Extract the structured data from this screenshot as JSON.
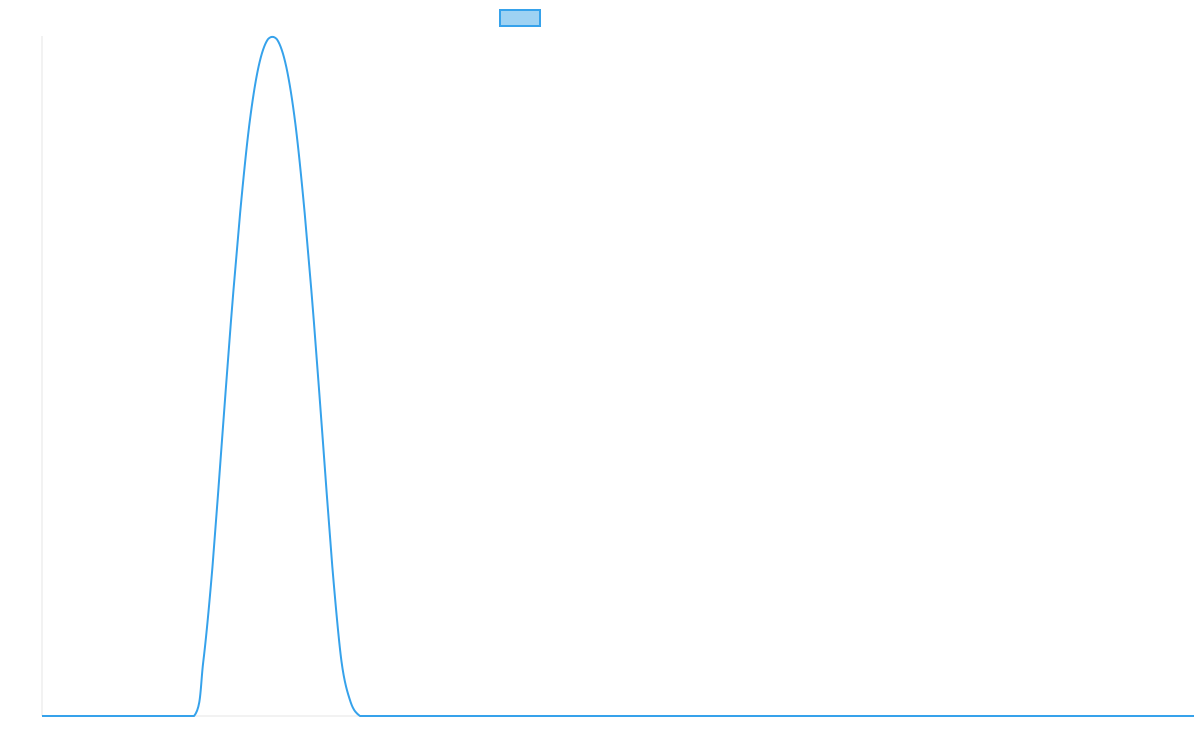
{
  "chart_data": {
    "type": "line",
    "title": "",
    "xlabel": "",
    "ylabel": "",
    "x": [
      0,
      0.5,
      0.66,
      0.7,
      0.74,
      0.78,
      0.82,
      0.86,
      0.9,
      0.94,
      0.98,
      1.02,
      1.06,
      1.1,
      1.14,
      1.18,
      1.22,
      1.26,
      1.3,
      1.34,
      1.38,
      1.42,
      1.46,
      1.5,
      2,
      3,
      4,
      5
    ],
    "xlim": [
      0,
      5
    ],
    "ylim": [
      0,
      1
    ],
    "series": [
      {
        "name": "",
        "values": [
          0,
          0,
          0,
          0.08,
          0.22,
          0.4,
          0.58,
          0.74,
          0.87,
          0.955,
          0.995,
          0.995,
          0.955,
          0.87,
          0.74,
          0.58,
          0.4,
          0.22,
          0.08,
          0.02,
          0,
          0,
          0,
          0,
          0,
          0,
          0,
          0
        ]
      }
    ],
    "legend": {
      "placement": "top-center",
      "swatch_fill": "#9ed2f3",
      "swatch_stroke": "#36a2eb"
    },
    "colors": {
      "line": "#36a2eb",
      "axis": "#e5e5e5"
    },
    "grid": false,
    "tick_labels_visible": false
  }
}
